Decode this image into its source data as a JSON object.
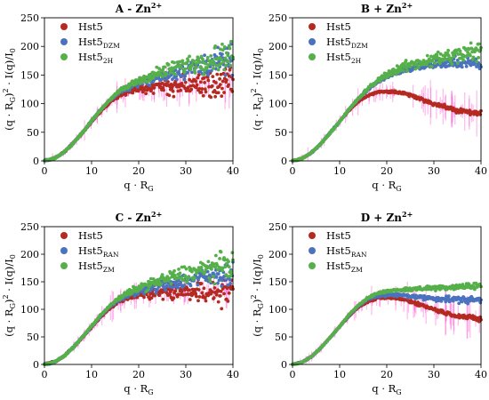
{
  "colors": {
    "red": "#b52a20",
    "blue": "#4a72be",
    "green": "#56b04a",
    "band": "#ff33cc"
  },
  "chart_data": [
    {
      "type": "scatter",
      "title": "A - Zn",
      "title_sup": "2+",
      "xlabel": "q · R",
      "xlabel_sub": "G",
      "ylabel_parts": [
        "(q · R",
        "G",
        ")",
        "2",
        " · I(q)/I",
        "0"
      ],
      "xlim": [
        0,
        40
      ],
      "ylim": [
        0,
        250
      ],
      "xticks": [
        0,
        10,
        20,
        30,
        40
      ],
      "yticks": [
        0,
        50,
        100,
        150,
        200,
        250
      ],
      "xtick_labels": [
        "0",
        "10",
        "20",
        "30",
        "40"
      ],
      "ytick_labels": [
        "0",
        "50",
        "100",
        "150",
        "200",
        "250"
      ],
      "legend_position": "top-left",
      "series": [
        {
          "name": "Hst5",
          "name_sub": "",
          "color": "#b52a20",
          "x": [
            0,
            2,
            4,
            6,
            8,
            10,
            12,
            14,
            16,
            18,
            20,
            22,
            24,
            26,
            28,
            30,
            32,
            34,
            36,
            38,
            40
          ],
          "y": [
            0,
            4,
            14,
            30,
            48,
            68,
            87,
            103,
            115,
            122,
            126,
            128,
            130,
            130,
            131,
            132,
            132,
            133,
            134,
            134,
            135
          ],
          "noise_start": 14,
          "noise_amp": [
            3,
            50
          ],
          "band": true
        },
        {
          "name": "Hst5",
          "name_sub": "DZM",
          "color": "#4a72be",
          "x": [
            0,
            2,
            4,
            6,
            8,
            10,
            12,
            14,
            16,
            18,
            20,
            22,
            24,
            26,
            28,
            30,
            32,
            34,
            36,
            38,
            40
          ],
          "y": [
            0,
            4,
            14,
            30,
            49,
            70,
            90,
            107,
            120,
            129,
            136,
            141,
            146,
            151,
            156,
            160,
            164,
            168,
            171,
            174,
            177
          ],
          "noise_start": 14,
          "noise_amp": [
            3,
            42
          ],
          "band": false
        },
        {
          "name": "Hst5",
          "name_sub": "2H",
          "color": "#56b04a",
          "x": [
            0,
            2,
            4,
            6,
            8,
            10,
            12,
            14,
            16,
            18,
            20,
            22,
            24,
            26,
            28,
            30,
            32,
            34,
            36,
            38,
            40
          ],
          "y": [
            0,
            4,
            14,
            30,
            49,
            70,
            90,
            108,
            122,
            132,
            140,
            147,
            153,
            158,
            163,
            168,
            172,
            176,
            180,
            183,
            186
          ],
          "noise_start": 14,
          "noise_amp": [
            3,
            42
          ],
          "band": false
        }
      ]
    },
    {
      "type": "scatter",
      "title": "B + Zn",
      "title_sup": "2+",
      "xlabel": "q · R",
      "xlabel_sub": "G",
      "ylabel_parts": [
        "(q · R",
        "G",
        ")",
        "2",
        " · I(q)/I",
        "0"
      ],
      "xlim": [
        0,
        40
      ],
      "ylim": [
        0,
        250
      ],
      "xticks": [
        0,
        10,
        20,
        30,
        40
      ],
      "yticks": [
        0,
        50,
        100,
        150,
        200,
        250
      ],
      "xtick_labels": [
        "0",
        "10",
        "20",
        "30",
        "40"
      ],
      "ytick_labels": [
        "0",
        "50",
        "100",
        "150",
        "200",
        "250"
      ],
      "legend_position": "top-left",
      "series": [
        {
          "name": "Hst5",
          "name_sub": "",
          "color": "#b52a20",
          "x": [
            0,
            2,
            4,
            6,
            8,
            10,
            12,
            14,
            16,
            18,
            20,
            22,
            24,
            26,
            28,
            30,
            32,
            34,
            36,
            38,
            40
          ],
          "y": [
            0,
            4,
            14,
            30,
            49,
            69,
            88,
            104,
            114,
            120,
            121,
            120,
            117,
            112,
            106,
            100,
            95,
            90,
            87,
            84,
            82
          ],
          "noise_start": 14,
          "noise_amp": [
            2,
            8
          ],
          "band": true
        },
        {
          "name": "Hst5",
          "name_sub": "DZM",
          "color": "#4a72be",
          "x": [
            0,
            2,
            4,
            6,
            8,
            10,
            12,
            14,
            16,
            18,
            20,
            22,
            24,
            26,
            28,
            30,
            32,
            34,
            36,
            38,
            40
          ],
          "y": [
            0,
            4,
            14,
            30,
            49,
            69,
            90,
            109,
            125,
            138,
            148,
            155,
            160,
            164,
            167,
            169,
            170,
            171,
            171,
            170,
            169
          ],
          "noise_start": 14,
          "noise_amp": [
            3,
            22
          ],
          "band": false
        },
        {
          "name": "Hst5",
          "name_sub": "2H",
          "color": "#56b04a",
          "x": [
            0,
            2,
            4,
            6,
            8,
            10,
            12,
            14,
            16,
            18,
            20,
            22,
            24,
            26,
            28,
            30,
            32,
            34,
            36,
            38,
            40
          ],
          "y": [
            0,
            4,
            14,
            30,
            49,
            69,
            90,
            109,
            126,
            140,
            151,
            159,
            165,
            170,
            174,
            177,
            180,
            183,
            186,
            188,
            190
          ],
          "noise_start": 14,
          "noise_amp": [
            3,
            34
          ],
          "band": false
        }
      ]
    },
    {
      "type": "scatter",
      "title": "C - Zn",
      "title_sup": "2+",
      "xlabel": "q · R",
      "xlabel_sub": "G",
      "ylabel_parts": [
        "(q · R",
        "G",
        ")",
        "2",
        " · I(q)/I",
        "0"
      ],
      "xlim": [
        0,
        40
      ],
      "ylim": [
        0,
        250
      ],
      "xticks": [
        0,
        10,
        20,
        30,
        40
      ],
      "yticks": [
        0,
        50,
        100,
        150,
        200,
        250
      ],
      "xtick_labels": [
        "0",
        "10",
        "20",
        "30",
        "40"
      ],
      "ytick_labels": [
        "0",
        "50",
        "100",
        "150",
        "200",
        "250"
      ],
      "legend_position": "top-left",
      "series": [
        {
          "name": "Hst5",
          "name_sub": "",
          "color": "#b52a20",
          "x": [
            0,
            2,
            4,
            6,
            8,
            10,
            12,
            14,
            16,
            18,
            20,
            22,
            24,
            26,
            28,
            30,
            32,
            34,
            36,
            38,
            40
          ],
          "y": [
            0,
            4,
            14,
            30,
            48,
            68,
            87,
            103,
            115,
            122,
            126,
            128,
            130,
            130,
            131,
            132,
            132,
            133,
            134,
            134,
            135
          ],
          "noise_start": 14,
          "noise_amp": [
            3,
            48
          ],
          "band": true
        },
        {
          "name": "Hst5",
          "name_sub": "RAN",
          "color": "#4a72be",
          "x": [
            0,
            2,
            4,
            6,
            8,
            10,
            12,
            14,
            16,
            18,
            20,
            22,
            24,
            26,
            28,
            30,
            32,
            34,
            36,
            38,
            40
          ],
          "y": [
            0,
            4,
            14,
            30,
            49,
            69,
            89,
            106,
            118,
            127,
            133,
            138,
            142,
            146,
            150,
            153,
            156,
            159,
            162,
            164,
            166
          ],
          "noise_start": 14,
          "noise_amp": [
            3,
            40
          ],
          "band": false
        },
        {
          "name": "Hst5",
          "name_sub": "ZM",
          "color": "#56b04a",
          "x": [
            0,
            2,
            4,
            6,
            8,
            10,
            12,
            14,
            16,
            18,
            20,
            22,
            24,
            26,
            28,
            30,
            32,
            34,
            36,
            38,
            40
          ],
          "y": [
            0,
            4,
            14,
            30,
            49,
            70,
            90,
            108,
            121,
            131,
            139,
            145,
            150,
            155,
            160,
            164,
            168,
            172,
            176,
            179,
            182
          ],
          "noise_start": 14,
          "noise_amp": [
            3,
            42
          ],
          "band": false
        }
      ]
    },
    {
      "type": "scatter",
      "title": "D + Zn",
      "title_sup": "2+",
      "xlabel": "q · R",
      "xlabel_sub": "G",
      "ylabel_parts": [
        "(q · R",
        "G",
        ")",
        "2",
        " · I(q)/I",
        "0"
      ],
      "xlim": [
        0,
        40
      ],
      "ylim": [
        0,
        250
      ],
      "xticks": [
        0,
        10,
        20,
        30,
        40
      ],
      "yticks": [
        0,
        50,
        100,
        150,
        200,
        250
      ],
      "xtick_labels": [
        "0",
        "10",
        "20",
        "30",
        "40"
      ],
      "ytick_labels": [
        "0",
        "50",
        "100",
        "150",
        "200",
        "250"
      ],
      "legend_position": "top-left",
      "series": [
        {
          "name": "Hst5",
          "name_sub": "",
          "color": "#b52a20",
          "x": [
            0,
            2,
            4,
            6,
            8,
            10,
            12,
            14,
            16,
            18,
            20,
            22,
            24,
            26,
            28,
            30,
            32,
            34,
            36,
            38,
            40
          ],
          "y": [
            0,
            4,
            14,
            30,
            49,
            69,
            88,
            104,
            114,
            120,
            121,
            120,
            117,
            112,
            106,
            100,
            95,
            90,
            87,
            84,
            82
          ],
          "noise_start": 14,
          "noise_amp": [
            2,
            8
          ],
          "band": true
        },
        {
          "name": "Hst5",
          "name_sub": "RAN",
          "color": "#4a72be",
          "x": [
            0,
            2,
            4,
            6,
            8,
            10,
            12,
            14,
            16,
            18,
            20,
            22,
            24,
            26,
            28,
            30,
            32,
            34,
            36,
            38,
            40
          ],
          "y": [
            0,
            4,
            14,
            30,
            49,
            69,
            89,
            106,
            118,
            124,
            126,
            126,
            125,
            123,
            121,
            120,
            119,
            118,
            118,
            117,
            117
          ],
          "noise_start": 14,
          "noise_amp": [
            2,
            12
          ],
          "band": false
        },
        {
          "name": "Hst5",
          "name_sub": "ZM",
          "color": "#56b04a",
          "x": [
            0,
            2,
            4,
            6,
            8,
            10,
            12,
            14,
            16,
            18,
            20,
            22,
            24,
            26,
            28,
            30,
            32,
            34,
            36,
            38,
            40
          ],
          "y": [
            0,
            4,
            14,
            30,
            49,
            69,
            90,
            108,
            121,
            129,
            133,
            135,
            136,
            137,
            138,
            139,
            140,
            141,
            141,
            142,
            143
          ],
          "noise_start": 14,
          "noise_amp": [
            2,
            12
          ],
          "band": false
        }
      ]
    }
  ]
}
